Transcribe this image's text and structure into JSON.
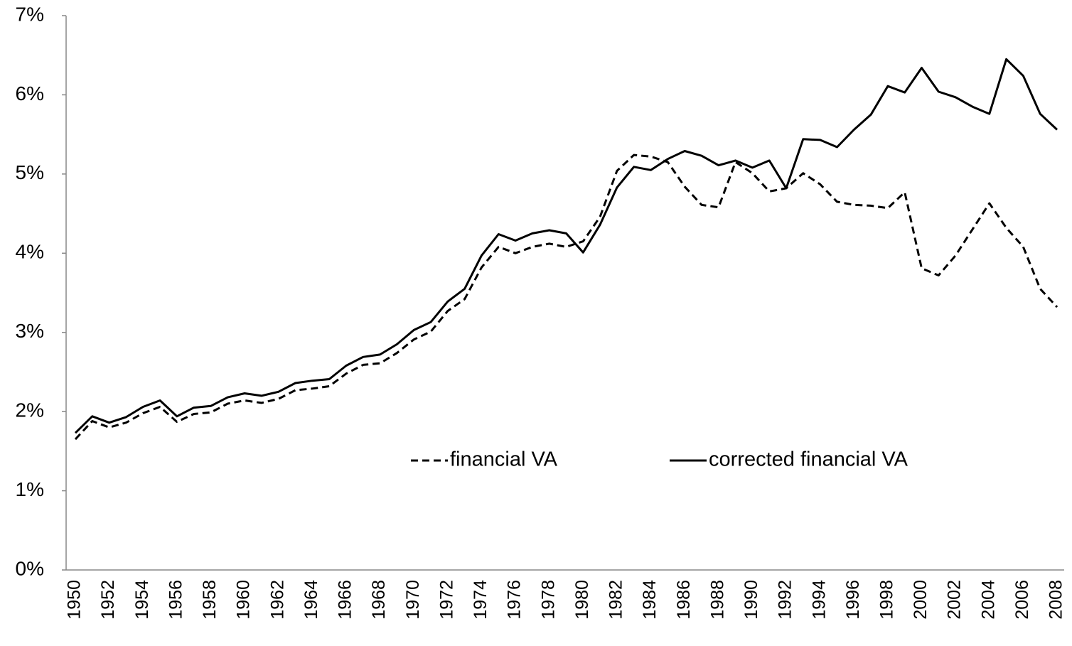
{
  "chart_data": {
    "type": "line",
    "categories": [
      "1950",
      null,
      "1952",
      null,
      "1954",
      null,
      "1956",
      null,
      "1958",
      null,
      "1960",
      null,
      "1962",
      null,
      "1964",
      null,
      "1966",
      null,
      "1968",
      null,
      "1970",
      null,
      "1972",
      null,
      "1974",
      null,
      "1976",
      null,
      "1978",
      null,
      "1980",
      null,
      "1982",
      null,
      "1984",
      null,
      "1986",
      null,
      "1988",
      null,
      "1990",
      null,
      "1992",
      null,
      "1994",
      null,
      "1996",
      null,
      "1998",
      null,
      "2000",
      null,
      "2002",
      null,
      "2004",
      null,
      "2006",
      null,
      "2008"
    ],
    "series": [
      {
        "name": "financial VA",
        "color": "#000000",
        "dash": "dashed",
        "values": [
          1.65,
          1.88,
          1.8,
          1.86,
          1.98,
          2.06,
          1.87,
          1.97,
          1.99,
          2.1,
          2.14,
          2.11,
          2.16,
          2.27,
          2.29,
          2.32,
          2.48,
          2.59,
          2.61,
          2.74,
          2.91,
          3.01,
          3.27,
          3.42,
          3.82,
          4.08,
          4.0,
          4.08,
          4.12,
          4.08,
          4.15,
          4.46,
          5.04,
          5.24,
          5.22,
          5.15,
          4.84,
          4.61,
          4.58,
          5.15,
          5.01,
          4.78,
          4.82,
          5.01,
          4.87,
          4.65,
          4.61,
          4.6,
          4.57,
          4.77,
          3.81,
          3.72,
          3.97,
          4.3,
          4.63,
          4.32,
          4.08,
          3.55,
          3.32
        ]
      },
      {
        "name": "corrected financial VA",
        "color": "#000000",
        "dash": "solid",
        "values": [
          1.73,
          1.94,
          1.86,
          1.93,
          2.06,
          2.14,
          1.94,
          2.05,
          2.07,
          2.18,
          2.23,
          2.2,
          2.25,
          2.36,
          2.39,
          2.41,
          2.58,
          2.69,
          2.72,
          2.85,
          3.03,
          3.13,
          3.39,
          3.55,
          3.97,
          4.24,
          4.16,
          4.25,
          4.29,
          4.25,
          4.01,
          4.36,
          4.83,
          5.09,
          5.05,
          5.19,
          5.29,
          5.23,
          5.11,
          5.17,
          5.08,
          5.17,
          4.82,
          5.44,
          5.43,
          5.34,
          5.56,
          5.75,
          6.11,
          6.03,
          6.34,
          6.04,
          5.97,
          5.85,
          5.76,
          6.45,
          6.24,
          5.76,
          5.56
        ]
      }
    ],
    "ylim": [
      0,
      7
    ],
    "yticks": [
      {
        "value": 0,
        "label": "0%"
      },
      {
        "value": 1,
        "label": "1%"
      },
      {
        "value": 2,
        "label": "2%"
      },
      {
        "value": 3,
        "label": "3%"
      },
      {
        "value": 4,
        "label": "4%"
      },
      {
        "value": 5,
        "label": "5%"
      },
      {
        "value": 6,
        "label": "6%"
      },
      {
        "value": 7,
        "label": "7%"
      }
    ],
    "grid": false,
    "legend": "inside"
  }
}
